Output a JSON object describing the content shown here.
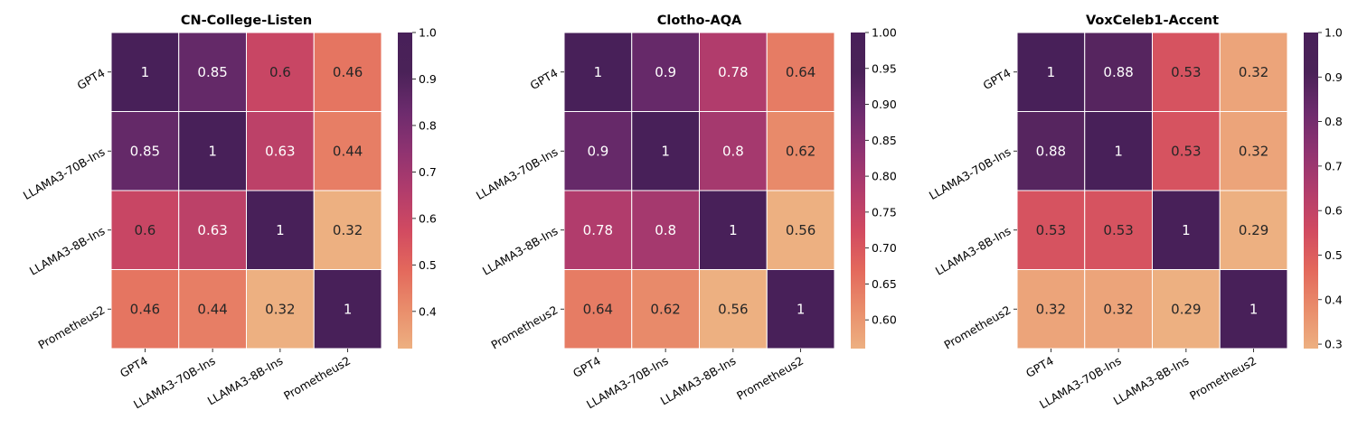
{
  "chart_data": [
    {
      "type": "heatmap",
      "title": "CN-College-Listen",
      "rows": [
        "GPT4",
        "LLAMA3-70B-Ins",
        "LLAMA3-8B-Ins",
        "Prometheus2"
      ],
      "cols": [
        "GPT4",
        "LLAMA3-70B-Ins",
        "LLAMA3-8B-Ins",
        "Prometheus2"
      ],
      "values": [
        [
          1,
          0.85,
          0.6,
          0.46
        ],
        [
          0.85,
          1,
          0.63,
          0.44
        ],
        [
          0.6,
          0.63,
          1,
          0.32
        ],
        [
          0.46,
          0.44,
          0.32,
          1
        ]
      ],
      "labels": [
        [
          "1",
          "0.85",
          "0.6",
          "0.46"
        ],
        [
          "0.85",
          "1",
          "0.63",
          "0.44"
        ],
        [
          "0.6",
          "0.63",
          "1",
          "0.32"
        ],
        [
          "0.46",
          "0.44",
          "0.32",
          "1"
        ]
      ],
      "colorbar": {
        "min": 0.32,
        "max": 1.0,
        "ticks": [
          0.4,
          0.5,
          0.6,
          0.7,
          0.8,
          0.9,
          1.0
        ],
        "tick_labels": [
          "0.4",
          "0.5",
          "0.6",
          "0.7",
          "0.8",
          "0.9",
          "1.0"
        ]
      },
      "colormap": "flare"
    },
    {
      "type": "heatmap",
      "title": "Clotho-AQA",
      "rows": [
        "GPT4",
        "LLAMA3-70B-Ins",
        "LLAMA3-8B-Ins",
        "Prometheus2"
      ],
      "cols": [
        "GPT4",
        "LLAMA3-70B-Ins",
        "LLAMA3-8B-Ins",
        "Prometheus2"
      ],
      "values": [
        [
          1,
          0.9,
          0.78,
          0.64
        ],
        [
          0.9,
          1,
          0.8,
          0.62
        ],
        [
          0.78,
          0.8,
          1,
          0.56
        ],
        [
          0.64,
          0.62,
          0.56,
          1
        ]
      ],
      "labels": [
        [
          "1",
          "0.9",
          "0.78",
          "0.64"
        ],
        [
          "0.9",
          "1",
          "0.8",
          "0.62"
        ],
        [
          "0.78",
          "0.8",
          "1",
          "0.56"
        ],
        [
          "0.64",
          "0.62",
          "0.56",
          "1"
        ]
      ],
      "colorbar": {
        "min": 0.56,
        "max": 1.0,
        "ticks": [
          0.6,
          0.65,
          0.7,
          0.75,
          0.8,
          0.85,
          0.9,
          0.95,
          1.0
        ],
        "tick_labels": [
          "0.60",
          "0.65",
          "0.70",
          "0.75",
          "0.80",
          "0.85",
          "0.90",
          "0.95",
          "1.00"
        ]
      },
      "colormap": "flare"
    },
    {
      "type": "heatmap",
      "title": "VoxCeleb1-Accent",
      "rows": [
        "GPT4",
        "LLAMA3-70B-Ins",
        "LLAMA3-8B-Ins",
        "Prometheus2"
      ],
      "cols": [
        "GPT4",
        "LLAMA3-70B-Ins",
        "LLAMA3-8B-Ins",
        "Prometheus2"
      ],
      "values": [
        [
          1,
          0.88,
          0.53,
          0.32
        ],
        [
          0.88,
          1,
          0.53,
          0.32
        ],
        [
          0.53,
          0.53,
          1,
          0.29
        ],
        [
          0.32,
          0.32,
          0.29,
          1
        ]
      ],
      "labels": [
        [
          "1",
          "0.88",
          "0.53",
          "0.32"
        ],
        [
          "0.88",
          "1",
          "0.53",
          "0.32"
        ],
        [
          "0.53",
          "0.53",
          "1",
          "0.29"
        ],
        [
          "0.32",
          "0.32",
          "0.29",
          "1"
        ]
      ],
      "colorbar": {
        "min": 0.29,
        "max": 1.0,
        "ticks": [
          0.3,
          0.4,
          0.5,
          0.6,
          0.7,
          0.8,
          0.9,
          1.0
        ],
        "tick_labels": [
          "0.3",
          "0.4",
          "0.5",
          "0.6",
          "0.7",
          "0.8",
          "0.9",
          "1.0"
        ]
      },
      "colormap": "flare"
    }
  ],
  "palette": {
    "flare": [
      "#edb081",
      "#e98d6b",
      "#e3685c",
      "#d14a61",
      "#b13c6c",
      "#8f3371",
      "#6c2b6d",
      "#4a2258",
      "#482059"
    ]
  }
}
